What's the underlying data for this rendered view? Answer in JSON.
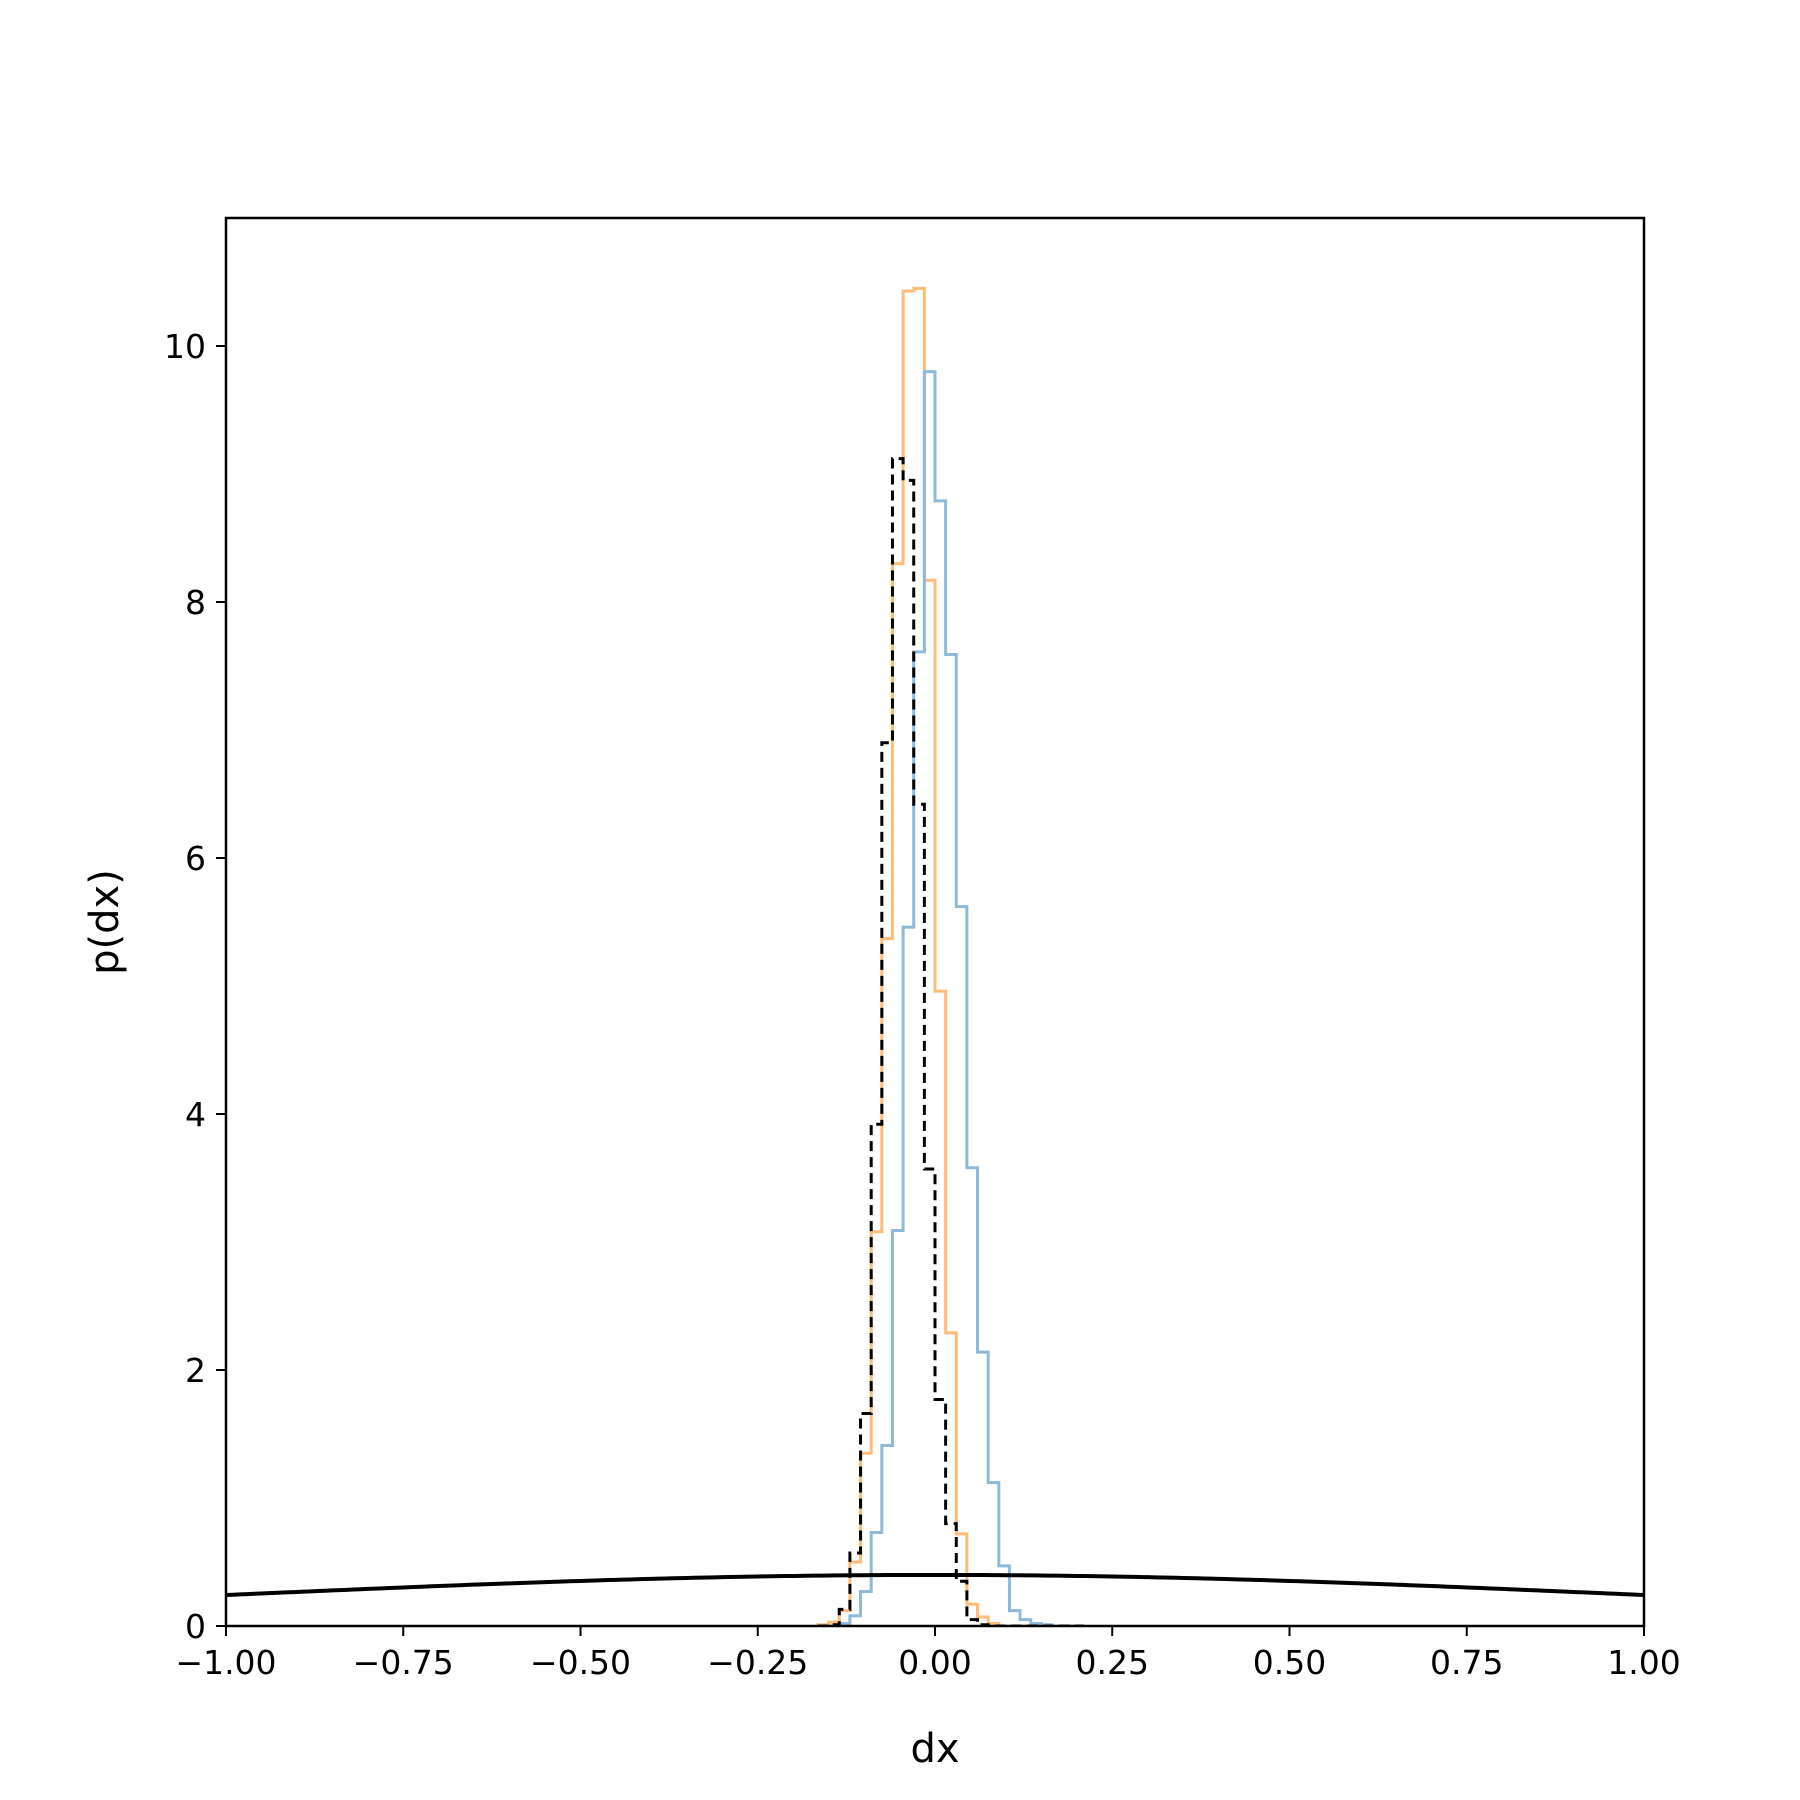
{
  "chart_data": {
    "type": "histogram",
    "title": "",
    "xlabel": "dx",
    "ylabel": "p(dx)",
    "xlim": [
      -1.0,
      1.0
    ],
    "ylim": [
      0,
      11.0
    ],
    "grid": false,
    "legend": "none",
    "x_ticks": [
      -1.0,
      -0.75,
      -0.5,
      -0.25,
      0.0,
      0.25,
      0.5,
      0.75,
      1.0
    ],
    "x_tick_labels": [
      "−1.00",
      "−0.75",
      "−0.50",
      "−0.25",
      "0.00",
      "0.25",
      "0.50",
      "0.75",
      "1.00"
    ],
    "y_ticks": [
      0,
      2,
      4,
      6,
      8,
      10
    ],
    "y_tick_labels": [
      "0",
      "2",
      "4",
      "6",
      "8",
      "10"
    ],
    "bin_edges": [
      -0.165,
      -0.15,
      -0.135,
      -0.12,
      -0.105,
      -0.09,
      -0.075,
      -0.06,
      -0.045,
      -0.03,
      -0.015,
      0.0,
      0.015,
      0.03,
      0.045,
      0.06,
      0.075,
      0.09,
      0.105,
      0.12,
      0.135,
      0.15,
      0.165,
      0.18,
      0.195,
      0.21
    ],
    "series": [
      {
        "style": "step",
        "color": "#ffbb78",
        "values": [
          0.01,
          0.03,
          0.12,
          0.5,
          1.35,
          3.08,
          5.37,
          8.3,
          10.43,
          10.45,
          8.17,
          4.96,
          2.29,
          0.72,
          0.17,
          0.07,
          0.02,
          0.0,
          0.0,
          0.0,
          0.0,
          0.0,
          0.0,
          0.0,
          0.0
        ]
      },
      {
        "style": "step",
        "color": "#8fb9d8",
        "values": [
          0.0,
          0.0,
          0.02,
          0.08,
          0.27,
          0.73,
          1.41,
          3.09,
          5.46,
          7.61,
          9.8,
          8.79,
          7.59,
          5.62,
          3.58,
          2.14,
          1.12,
          0.47,
          0.12,
          0.05,
          0.02,
          0.01,
          0.0,
          0.0,
          0.0
        ]
      },
      {
        "style": "step-dashed",
        "color": "#000000",
        "values": [
          0.0,
          0.01,
          0.13,
          0.57,
          1.66,
          3.92,
          6.9,
          9.12,
          8.95,
          6.42,
          3.57,
          1.77,
          0.8,
          0.35,
          0.05,
          0.01,
          0.0,
          0.0,
          0.0,
          0.0,
          0.0,
          0.0,
          0.0,
          0.0,
          0.0
        ]
      },
      {
        "style": "line",
        "color": "#000000",
        "function": "normal_pdf",
        "mean": 0.0,
        "std": 1.0,
        "x": [
          -1.0,
          -0.75,
          -0.5,
          -0.25,
          0.0,
          0.25,
          0.5,
          0.75,
          1.0
        ],
        "values": [
          0.242,
          0.301,
          0.352,
          0.387,
          0.399,
          0.387,
          0.352,
          0.301,
          0.242
        ]
      }
    ]
  }
}
